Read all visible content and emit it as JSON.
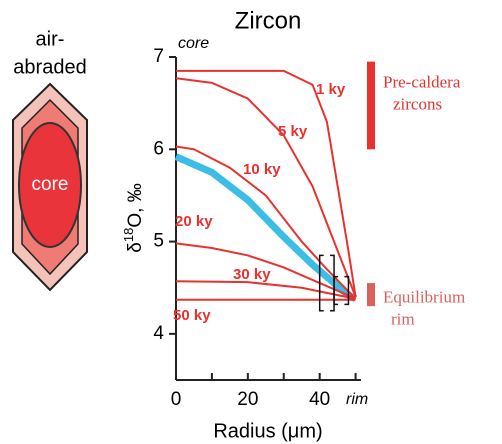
{
  "chart_data": {
    "type": "line",
    "title": "Zircon",
    "xlabel": "Radius (μm)",
    "ylabel": {
      "prefix": "δ",
      "sup": "18",
      "suffix": "O, ‰"
    },
    "top_label": "core",
    "end_label": "rim",
    "xlim": [
      0,
      51.5
    ],
    "ylim": [
      3.5,
      7
    ],
    "xticks": [
      0,
      20,
      40
    ],
    "xminor": [
      10,
      30,
      50
    ],
    "yticks": [
      4,
      5,
      6,
      7
    ],
    "series": [
      {
        "name": "1 ky",
        "color": "#e8322e",
        "x": [
          0,
          30,
          38,
          42,
          45,
          48,
          50
        ],
        "values": [
          6.85,
          6.85,
          6.7,
          6.3,
          5.6,
          4.9,
          4.4
        ]
      },
      {
        "name": "5 ky",
        "color": "#e8322e",
        "x": [
          0,
          10,
          20,
          30,
          38,
          43,
          47,
          50
        ],
        "values": [
          6.77,
          6.72,
          6.55,
          6.15,
          5.6,
          5.1,
          4.7,
          4.4
        ]
      },
      {
        "name": "10 ky",
        "color": "#e8322e",
        "x": [
          0,
          5,
          15,
          25,
          35,
          42,
          47,
          50
        ],
        "values": [
          6.03,
          6.0,
          5.8,
          5.5,
          5.0,
          4.7,
          4.5,
          4.38
        ]
      },
      {
        "name": "20 ky",
        "color": "#e8322e",
        "x": [
          0,
          10,
          20,
          30,
          40,
          46,
          50
        ],
        "values": [
          4.98,
          4.93,
          4.85,
          4.72,
          4.55,
          4.45,
          4.38
        ]
      },
      {
        "name": "30 ky",
        "color": "#e8322e",
        "x": [
          0,
          20,
          35,
          45,
          50
        ],
        "values": [
          4.57,
          4.56,
          4.5,
          4.42,
          4.38
        ]
      },
      {
        "name": "50 ky",
        "color": "#e8322e",
        "x": [
          0,
          50
        ],
        "values": [
          4.37,
          4.37
        ]
      }
    ],
    "measured": {
      "color": "#3bbde6",
      "x": [
        0,
        10,
        20,
        30,
        38,
        44,
        48,
        50
      ],
      "values": [
        5.92,
        5.75,
        5.45,
        5.05,
        4.75,
        4.55,
        4.42,
        4.38
      ]
    },
    "brackets": [
      {
        "x": [
          40,
          44
        ],
        "y": [
          4.25,
          4.85
        ]
      },
      {
        "x": [
          44,
          48
        ],
        "y": [
          4.32,
          4.62
        ]
      }
    ],
    "ranges": [
      {
        "lines": [
          "Pre-caldera",
          "zircons"
        ],
        "color": "#e8322e",
        "y": [
          6.0,
          6.95
        ]
      },
      {
        "lines": [
          "Equilibrium",
          "rim"
        ],
        "color": "#d9625f",
        "y": [
          4.3,
          4.55
        ]
      }
    ]
  },
  "diagram": {
    "caption": [
      "air-",
      "abraded"
    ],
    "core": "core"
  }
}
